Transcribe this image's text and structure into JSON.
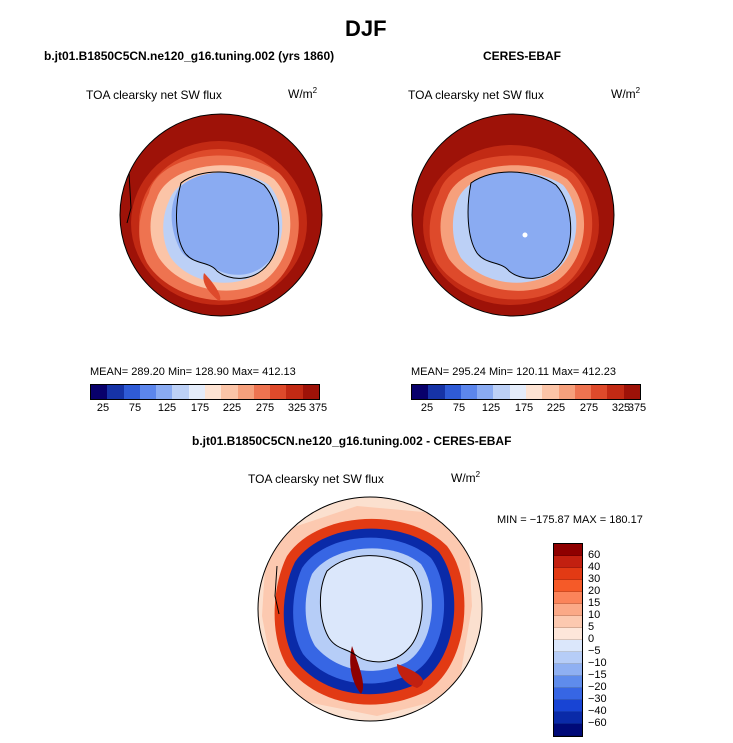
{
  "figure": {
    "title": "DJF",
    "left_panel": {
      "subtitle": "b.jt01.B1850C5CN.ne120_g16.tuning.002 (yrs 1860)",
      "variable": "TOA clearsky net SW flux",
      "units": "W/m",
      "units_sup": "2",
      "stats": "MEAN= 289.20  Min= 128.90  Max= 412.13"
    },
    "right_panel": {
      "subtitle": "CERES-EBAF",
      "variable": "TOA clearsky net SW flux",
      "units": "W/m",
      "units_sup": "2",
      "stats": "MEAN= 295.24  Min= 120.11  Max= 412.23"
    },
    "bottom_panel": {
      "subtitle": "b.jt01.B1850C5CN.ne120_g16.tuning.002 - CERES-EBAF",
      "variable": "TOA clearsky net SW flux",
      "units": "W/m",
      "units_sup": "2",
      "stats": "MIN = −175.87 MAX = 180.17"
    },
    "abs_colorbar": {
      "colors": [
        "#08006b",
        "#1633a6",
        "#2f5bd6",
        "#5c86ec",
        "#8aabf2",
        "#bcd0f6",
        "#e4ecfa",
        "#fde3d3",
        "#fbc4a7",
        "#f6a07c",
        "#ee7350",
        "#de4a2b",
        "#c22a14",
        "#9e1208"
      ],
      "tick_labels": [
        "25",
        "75",
        "125",
        "175",
        "225",
        "275",
        "325",
        "375"
      ]
    },
    "diff_colorbar": {
      "colors": [
        "#8e0000",
        "#c22010",
        "#e23a14",
        "#f55a28",
        "#fb845a",
        "#fba987",
        "#fcc9b0",
        "#fde6da",
        "#dbe7fb",
        "#b6cdf7",
        "#8fb0f2",
        "#5f8cec",
        "#3766e4",
        "#1844d4",
        "#0a2aa8",
        "#000a78"
      ],
      "tick_labels": [
        "60",
        "40",
        "30",
        "20",
        "15",
        "10",
        "5",
        "0",
        "−5",
        "−10",
        "−15",
        "−20",
        "−30",
        "−40",
        "−60"
      ]
    }
  }
}
